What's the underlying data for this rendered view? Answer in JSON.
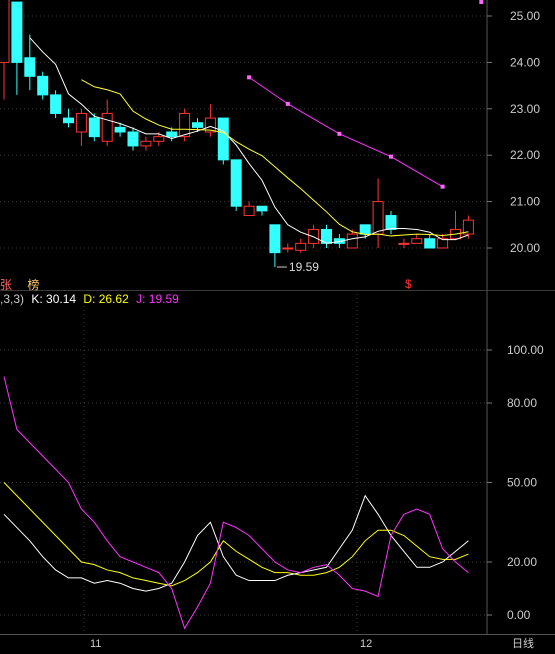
{
  "price_panel": {
    "y_ticks": [
      "25.00",
      "24.00",
      "23.00",
      "22.00",
      "21.00",
      "20.00"
    ],
    "low_marker_label": "19.59",
    "side_labels": [
      {
        "text": "张",
        "color": "#ff6666"
      },
      {
        "text": "榜",
        "color": "#ffcc66"
      }
    ],
    "dollar_marker": "$",
    "candles": [
      {
        "o": 24.0,
        "c": 25.9,
        "h": 25.9,
        "l": 23.2
      },
      {
        "o": 25.3,
        "c": 24.0,
        "h": 25.3,
        "l": 23.3
      },
      {
        "o": 24.1,
        "c": 23.7,
        "h": 24.6,
        "l": 23.4
      },
      {
        "o": 23.7,
        "c": 23.3,
        "h": 23.8,
        "l": 23.2
      },
      {
        "o": 23.3,
        "c": 22.9,
        "h": 23.4,
        "l": 22.8
      },
      {
        "o": 22.8,
        "c": 22.7,
        "h": 23.0,
        "l": 22.6
      },
      {
        "o": 22.5,
        "c": 22.9,
        "h": 23.0,
        "l": 22.2
      },
      {
        "o": 22.8,
        "c": 22.4,
        "h": 22.9,
        "l": 22.3
      },
      {
        "o": 22.3,
        "c": 22.9,
        "h": 23.2,
        "l": 22.2
      },
      {
        "o": 22.6,
        "c": 22.5,
        "h": 22.7,
        "l": 22.4
      },
      {
        "o": 22.5,
        "c": 22.2,
        "h": 22.6,
        "l": 22.1
      },
      {
        "o": 22.2,
        "c": 22.3,
        "h": 22.4,
        "l": 22.1
      },
      {
        "o": 22.3,
        "c": 22.4,
        "h": 22.5,
        "l": 22.2
      },
      {
        "o": 22.5,
        "c": 22.4,
        "h": 22.6,
        "l": 22.3
      },
      {
        "o": 22.4,
        "c": 22.9,
        "h": 23.0,
        "l": 22.3
      },
      {
        "o": 22.7,
        "c": 22.6,
        "h": 22.8,
        "l": 22.5
      },
      {
        "o": 22.5,
        "c": 22.8,
        "h": 23.1,
        "l": 22.4
      },
      {
        "o": 22.8,
        "c": 21.9,
        "h": 22.8,
        "l": 21.8
      },
      {
        "o": 21.9,
        "c": 20.9,
        "h": 21.9,
        "l": 20.8
      },
      {
        "o": 20.7,
        "c": 20.9,
        "h": 21.0,
        "l": 20.7
      },
      {
        "o": 20.9,
        "c": 20.8,
        "h": 20.9,
        "l": 20.7
      },
      {
        "o": 20.5,
        "c": 19.9,
        "h": 20.5,
        "l": 19.59
      },
      {
        "o": 20.0,
        "c": 20.0,
        "h": 20.1,
        "l": 19.9
      },
      {
        "o": 19.95,
        "c": 20.1,
        "h": 20.2,
        "l": 19.9
      },
      {
        "o": 20.1,
        "c": 20.4,
        "h": 20.5,
        "l": 20.0
      },
      {
        "o": 20.4,
        "c": 20.1,
        "h": 20.5,
        "l": 20.0
      },
      {
        "o": 20.2,
        "c": 20.1,
        "h": 20.3,
        "l": 20.0
      },
      {
        "o": 20.0,
        "c": 20.3,
        "h": 20.4,
        "l": 20.0
      },
      {
        "o": 20.5,
        "c": 20.3,
        "h": 20.5,
        "l": 20.2
      },
      {
        "o": 20.3,
        "c": 21.0,
        "h": 21.5,
        "l": 20.0
      },
      {
        "o": 20.7,
        "c": 20.4,
        "h": 20.8,
        "l": 20.3
      },
      {
        "o": 20.1,
        "c": 20.1,
        "h": 20.2,
        "l": 20.0
      },
      {
        "o": 20.1,
        "c": 20.2,
        "h": 20.3,
        "l": 20.1
      },
      {
        "o": 20.2,
        "c": 20.0,
        "h": 20.3,
        "l": 20.0
      },
      {
        "o": 20.0,
        "c": 20.2,
        "h": 20.3,
        "l": 20.0
      },
      {
        "o": 20.2,
        "c": 20.4,
        "h": 20.8,
        "l": 20.2
      },
      {
        "o": 20.3,
        "c": 20.6,
        "h": 20.7,
        "l": 20.2
      }
    ]
  },
  "kdj_panel": {
    "header_prefix": ",3,3)",
    "k_label": "K: 30.14",
    "d_label": "D: 26.62",
    "j_label": "J: 19.59",
    "y_ticks": [
      "100.00",
      "80.00",
      "50.00",
      "20.00",
      "0.00"
    ]
  },
  "x_axis": {
    "month_labels": [
      "11",
      "12"
    ],
    "right_label": "日线"
  },
  "colors": {
    "background": "#000000",
    "up": "#ff3333",
    "down": "#33ffff",
    "k_line": "#ffffff",
    "d_line": "#ffff00",
    "j_line": "#ff33ff",
    "grid": "#3a3a3a",
    "axis_text": "#cccccc"
  }
}
